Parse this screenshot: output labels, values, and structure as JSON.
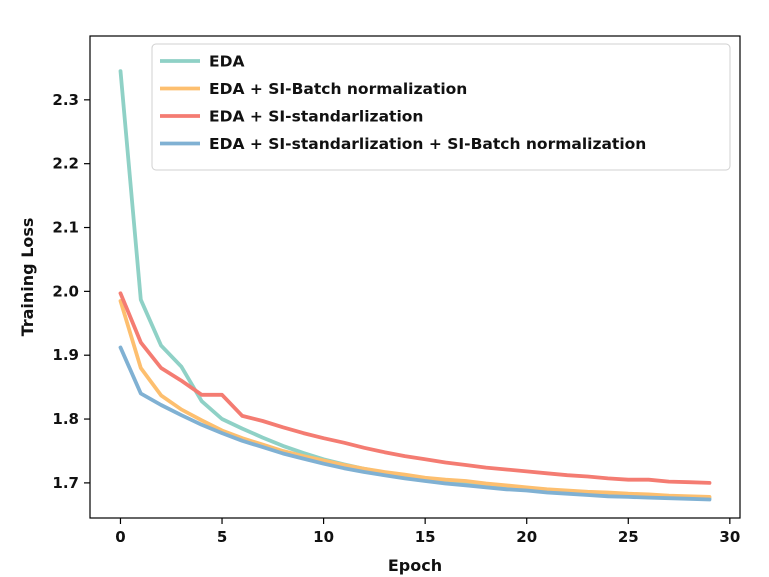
{
  "chart_data": {
    "type": "line",
    "title": "",
    "xlabel": "Epoch",
    "ylabel": "Training Loss",
    "xlim": [
      -1.5,
      30.5
    ],
    "ylim": [
      1.645,
      2.4
    ],
    "xticks": [
      0,
      5,
      10,
      15,
      20,
      25,
      30
    ],
    "yticks": [
      1.7,
      1.8,
      1.9,
      2.0,
      2.1,
      2.2,
      2.3
    ],
    "grid": false,
    "legend_position": "top-right",
    "x": [
      0,
      1,
      2,
      3,
      4,
      5,
      6,
      7,
      8,
      9,
      10,
      11,
      12,
      13,
      14,
      15,
      16,
      17,
      18,
      19,
      20,
      21,
      22,
      23,
      24,
      25,
      26,
      27,
      28,
      29
    ],
    "series": [
      {
        "name": "EDA",
        "color": "#8fd1c6",
        "values": [
          2.345,
          1.987,
          1.915,
          1.882,
          1.828,
          1.8,
          1.785,
          1.771,
          1.758,
          1.747,
          1.737,
          1.729,
          1.722,
          1.716,
          1.711,
          1.706,
          1.703,
          1.7,
          1.697,
          1.694,
          1.691,
          1.689,
          1.687,
          1.685,
          1.683,
          1.681,
          1.68,
          1.679,
          1.677,
          1.676
        ]
      },
      {
        "name": "EDA + SI-Batch normalization",
        "color": "#fdbf6f",
        "values": [
          1.985,
          1.88,
          1.837,
          1.815,
          1.798,
          1.782,
          1.77,
          1.76,
          1.75,
          1.742,
          1.735,
          1.728,
          1.722,
          1.717,
          1.713,
          1.708,
          1.705,
          1.703,
          1.699,
          1.696,
          1.693,
          1.69,
          1.688,
          1.686,
          1.685,
          1.683,
          1.682,
          1.68,
          1.679,
          1.678
        ]
      },
      {
        "name": "EDA + SI-standarlization",
        "color": "#f47c72",
        "values": [
          1.997,
          1.92,
          1.88,
          1.86,
          1.838,
          1.838,
          1.805,
          1.797,
          1.787,
          1.778,
          1.77,
          1.763,
          1.755,
          1.748,
          1.742,
          1.737,
          1.732,
          1.728,
          1.724,
          1.721,
          1.718,
          1.715,
          1.712,
          1.71,
          1.707,
          1.705,
          1.705,
          1.702,
          1.701,
          1.7
        ]
      },
      {
        "name": "EDA + SI-standarlization + SI-Batch normalization",
        "color": "#80b1d3",
        "values": [
          1.912,
          1.84,
          1.822,
          1.806,
          1.791,
          1.778,
          1.766,
          1.756,
          1.746,
          1.738,
          1.73,
          1.723,
          1.717,
          1.712,
          1.707,
          1.703,
          1.699,
          1.696,
          1.693,
          1.69,
          1.688,
          1.685,
          1.683,
          1.681,
          1.679,
          1.678,
          1.677,
          1.676,
          1.675,
          1.674
        ]
      }
    ]
  }
}
